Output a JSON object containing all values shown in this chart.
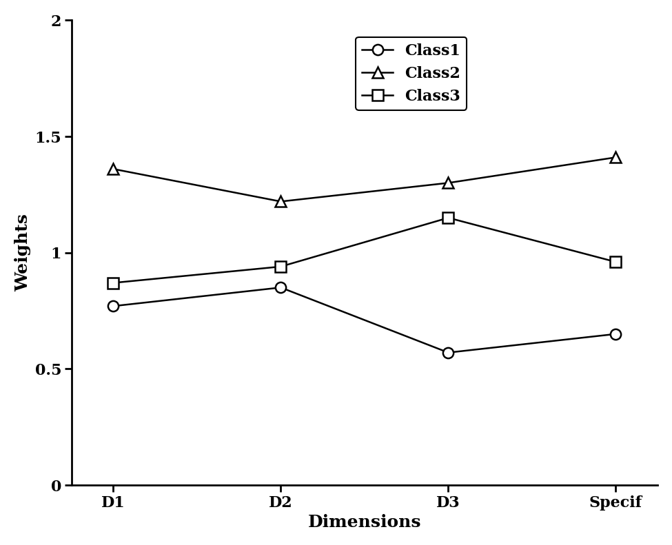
{
  "x_labels": [
    "D1",
    "D2",
    "D3",
    "Specif"
  ],
  "class1": [
    0.77,
    0.85,
    0.57,
    0.65
  ],
  "class2": [
    1.36,
    1.22,
    1.3,
    1.41
  ],
  "class3": [
    0.87,
    0.94,
    1.15,
    0.96
  ],
  "xlabel": "Dimensions",
  "ylabel": "Weights",
  "ylim": [
    0,
    2
  ],
  "yticks": [
    0,
    0.5,
    1,
    1.5,
    2
  ],
  "legend_labels": [
    "Class1",
    "Class2",
    "Class3"
  ],
  "line_color": "#000000",
  "marker_class1": "o",
  "marker_class2": "^",
  "marker_class3": "s",
  "markersize": 11,
  "linewidth": 1.8,
  "legend_fontsize": 16,
  "axis_label_fontsize": 18,
  "tick_fontsize": 16,
  "background_color": "#ffffff",
  "figwidth": 9.75,
  "figheight": 7.91,
  "dpi": 100
}
